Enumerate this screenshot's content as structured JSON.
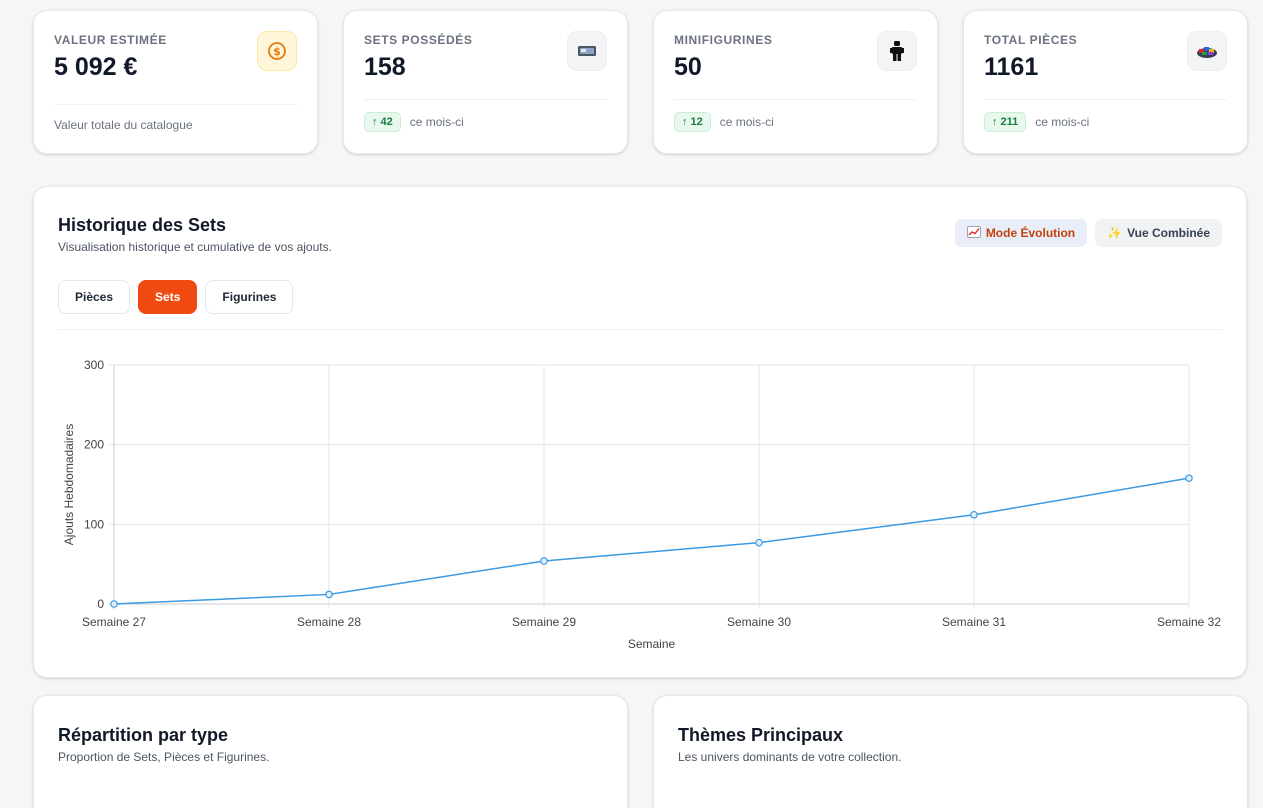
{
  "stats": [
    {
      "label": "VALEUR ESTIMÉE",
      "value": "5 092 €",
      "footer": "Valeur totale du catalogue",
      "icon": "dollar-coin-icon"
    },
    {
      "label": "SETS POSSÉDÉS",
      "value": "158",
      "delta": "42",
      "delta_suffix": "ce mois-ci",
      "icon": "lego-box-icon"
    },
    {
      "label": "MINIFIGURINES",
      "value": "50",
      "delta": "12",
      "delta_suffix": "ce mois-ci",
      "icon": "minifigure-icon"
    },
    {
      "label": "TOTAL PIÈCES",
      "value": "1161",
      "delta": "211",
      "delta_suffix": "ce mois-ci",
      "icon": "bricks-pile-icon"
    }
  ],
  "history": {
    "title": "Historique des Sets",
    "subtitle": "Visualisation historique et cumulative de vos ajouts.",
    "mode_evolution": "Mode Évolution",
    "mode_combined": "Vue Combinée",
    "tabs": [
      "Pièces",
      "Sets",
      "Figurines"
    ],
    "active_tab": "Sets"
  },
  "chart_data": {
    "type": "line",
    "x": [
      "Semaine 27",
      "Semaine 28",
      "Semaine 29",
      "Semaine 30",
      "Semaine 31",
      "Semaine 32"
    ],
    "values": [
      0,
      12,
      54,
      77,
      112,
      158
    ],
    "xlabel": "Semaine",
    "ylabel": "Ajouts Hebdomadaires",
    "ylim": [
      0,
      300
    ],
    "yticks": [
      0,
      100,
      200,
      300
    ],
    "grid": true,
    "line_color": "#3b9ae1"
  },
  "bottom": [
    {
      "title": "Répartition par type",
      "subtitle": "Proportion de Sets, Pièces et Figurines."
    },
    {
      "title": "Thèmes Principaux",
      "subtitle": "Les univers dominants de votre collection."
    }
  ]
}
